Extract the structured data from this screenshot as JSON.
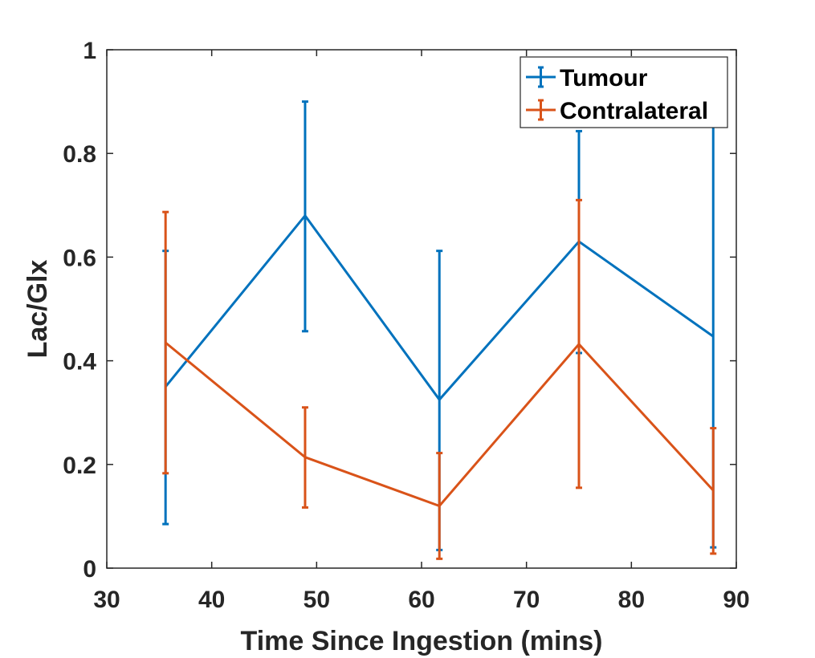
{
  "chart_data": {
    "type": "line",
    "title": "",
    "xlabel": "Time Since Ingestion (mins)",
    "ylabel": "Lac/Glx",
    "xlim": [
      30,
      90
    ],
    "ylim": [
      0,
      1
    ],
    "xticks": [
      30,
      40,
      50,
      60,
      70,
      80,
      90
    ],
    "yticks": [
      0,
      0.2,
      0.4,
      0.6,
      0.8,
      1
    ],
    "xtick_labels": [
      "30",
      "40",
      "50",
      "60",
      "70",
      "80",
      "90"
    ],
    "ytick_labels": [
      "0",
      "0.2",
      "0.4",
      "0.6",
      "0.8",
      "1"
    ],
    "grid": false,
    "legend_position": "top-right",
    "error_bars": true,
    "series": [
      {
        "name": "Tumour",
        "color": "#0072BD",
        "x": [
          35.6,
          48.9,
          61.7,
          75.0,
          87.8
        ],
        "y": [
          0.35,
          0.68,
          0.325,
          0.63,
          0.447
        ],
        "lower": [
          0.085,
          0.457,
          0.035,
          0.415,
          0.04
        ],
        "upper": [
          0.612,
          0.9,
          0.612,
          0.843,
          0.857
        ]
      },
      {
        "name": "Contralateral",
        "color": "#D95319",
        "x": [
          35.6,
          48.9,
          61.7,
          75.0,
          87.8
        ],
        "y": [
          0.435,
          0.214,
          0.12,
          0.432,
          0.15
        ],
        "lower": [
          0.183,
          0.117,
          0.018,
          0.155,
          0.028
        ],
        "upper": [
          0.687,
          0.31,
          0.222,
          0.71,
          0.27
        ]
      }
    ]
  }
}
